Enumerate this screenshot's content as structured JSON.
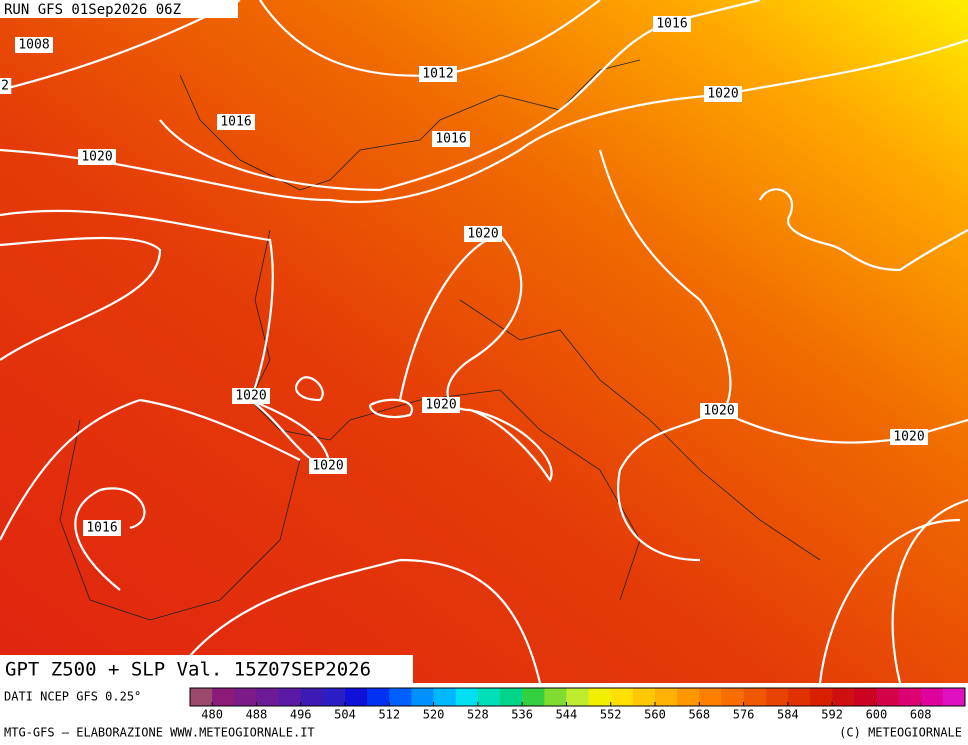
{
  "header": "RUN GFS 01Sep2026 06Z",
  "isobar_labels": [
    "1008",
    "2",
    "1016",
    "1012",
    "1020",
    "1016",
    "1016",
    "1020",
    "1020",
    "1020",
    "1020",
    "1020",
    "1020",
    "1020",
    "1016"
  ],
  "title": "GPT Z500 + SLP Val. 15Z07SEP2026",
  "source": "DATI NCEP GFS 0.25°",
  "footer_left": "MTG-GFS — ELABORAZIONE WWW.METEOGIORNALE.IT",
  "footer_right": "(C) METEOGIORNALE",
  "colorbar": {
    "lim": [
      476,
      616
    ],
    "ticks": [
      480,
      488,
      496,
      504,
      512,
      520,
      528,
      536,
      544,
      552,
      560,
      568,
      576,
      584,
      592,
      600,
      608
    ],
    "colors": [
      "#9b4a6e",
      "#8c1a78",
      "#7c1a88",
      "#6c1a96",
      "#5a1aa6",
      "#3e1ab4",
      "#2a1ec4",
      "#1010d8",
      "#0030f0",
      "#0060ff",
      "#0090ff",
      "#00b8ff",
      "#00e0f0",
      "#00e0b8",
      "#00d488",
      "#30d040",
      "#80dc30",
      "#c0ec30",
      "#f0f000",
      "#ffe000",
      "#ffc800",
      "#ffb000",
      "#ff9800",
      "#ff8000",
      "#f86c00",
      "#f05800",
      "#e84400",
      "#e03200",
      "#d82000",
      "#d01010",
      "#cc0020",
      "#d40048",
      "#dc0070",
      "#e0009c",
      "#e010c0"
    ]
  }
}
